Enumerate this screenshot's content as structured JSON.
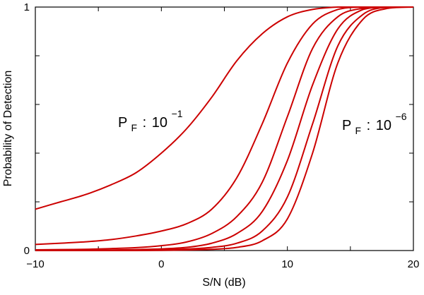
{
  "chart_data": {
    "type": "line",
    "title": "",
    "xlabel": "S/N (dB)",
    "ylabel": "Probability of Detection",
    "xlim": [
      -10,
      20
    ],
    "ylim": [
      0,
      1
    ],
    "x_ticks": [
      -10,
      0,
      10,
      20
    ],
    "x_tick_labels": [
      "−10",
      "0",
      "10",
      "20"
    ],
    "y_tick_labels": [
      {
        "value": 0,
        "label": "0"
      },
      {
        "value": 1,
        "label": "1"
      }
    ],
    "grid": false,
    "line_color": "#cc0000",
    "annotations": [
      {
        "base": "P",
        "sub": "F",
        "sep": ":",
        "mant": "10",
        "exp": "−1"
      },
      {
        "base": "P",
        "sub": "F",
        "sep": ":",
        "mant": "10",
        "exp": "−6"
      }
    ],
    "series": [
      {
        "x": [
          -10,
          -8,
          -6,
          -4,
          -2,
          0,
          2,
          4,
          6,
          8,
          10,
          12,
          14,
          16,
          18,
          20
        ],
        "values": [
          0.17,
          0.2,
          0.23,
          0.27,
          0.32,
          0.4,
          0.5,
          0.63,
          0.78,
          0.89,
          0.96,
          0.99,
          1.0,
          1.0,
          1.0,
          1.0
        ]
      },
      {
        "x": [
          -10,
          -8,
          -6,
          -4,
          -2,
          0,
          2,
          4,
          6,
          8,
          10,
          12,
          14,
          16,
          18,
          20
        ],
        "values": [
          0.025,
          0.03,
          0.036,
          0.045,
          0.06,
          0.08,
          0.11,
          0.17,
          0.3,
          0.52,
          0.77,
          0.93,
          0.99,
          1.0,
          1.0,
          1.0
        ]
      },
      {
        "x": [
          -10,
          -8,
          -6,
          -4,
          -2,
          0,
          2,
          4,
          6,
          8,
          10,
          12,
          14,
          16,
          18,
          20
        ],
        "values": [
          0.003,
          0.004,
          0.005,
          0.008,
          0.012,
          0.02,
          0.035,
          0.07,
          0.14,
          0.28,
          0.55,
          0.83,
          0.96,
          0.995,
          1.0,
          1.0
        ]
      },
      {
        "x": [
          -10,
          -8,
          -6,
          -4,
          -2,
          0,
          2,
          4,
          6,
          8,
          10,
          12,
          14,
          16,
          18,
          20
        ],
        "values": [
          0.0,
          0.0,
          0.001,
          0.002,
          0.004,
          0.007,
          0.013,
          0.03,
          0.07,
          0.16,
          0.37,
          0.68,
          0.91,
          0.99,
          1.0,
          1.0
        ]
      },
      {
        "x": [
          -10,
          -8,
          -6,
          -4,
          -2,
          0,
          2,
          4,
          6,
          8,
          10,
          12,
          14,
          16,
          18,
          20
        ],
        "values": [
          0.0,
          0.0,
          0.0,
          0.001,
          0.002,
          0.003,
          0.006,
          0.013,
          0.03,
          0.08,
          0.22,
          0.52,
          0.84,
          0.97,
          1.0,
          1.0
        ]
      },
      {
        "x": [
          -10,
          -8,
          -6,
          -4,
          -2,
          0,
          2,
          4,
          6,
          8,
          10,
          12,
          14,
          16,
          18,
          20
        ],
        "values": [
          0.0,
          0.0,
          0.0,
          0.0,
          0.0,
          0.001,
          0.002,
          0.005,
          0.013,
          0.04,
          0.13,
          0.4,
          0.77,
          0.95,
          0.995,
          1.0
        ]
      }
    ]
  }
}
